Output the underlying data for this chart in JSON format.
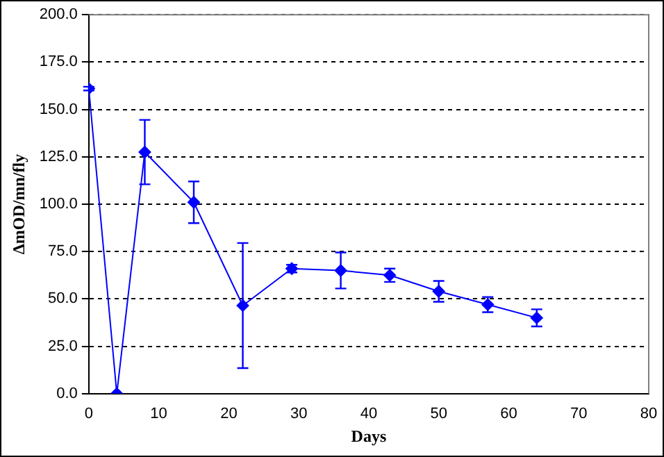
{
  "chart_data": {
    "type": "line",
    "xlabel": "Days",
    "ylabel": "ΔmOD/mn/fly",
    "x": [
      0,
      4,
      8,
      15,
      22,
      29,
      36,
      43,
      50,
      57,
      64
    ],
    "series": [
      {
        "color": "#0000ff",
        "values": [
          161,
          0,
          127.5,
          101,
          46.5,
          66,
          65,
          62.5,
          54,
          47,
          40
        ],
        "errors": [
          1,
          null,
          17,
          11,
          33,
          2,
          9.5,
          3.5,
          5.5,
          4,
          4.5
        ]
      }
    ],
    "xlim": [
      0,
      80
    ],
    "xticks": [
      0,
      10,
      20,
      30,
      40,
      50,
      60,
      70,
      80
    ],
    "ylim": [
      0,
      200
    ],
    "yticks": [
      {
        "value": 0,
        "label": "0.0"
      },
      {
        "value": 25,
        "label": "25.0"
      },
      {
        "value": 50,
        "label": "50.0"
      },
      {
        "value": 75,
        "label": "75.0"
      },
      {
        "value": 100,
        "label": "100.0"
      },
      {
        "value": 125,
        "label": "125.0"
      },
      {
        "value": 150,
        "label": "150.0"
      },
      {
        "value": 175,
        "label": "175.0"
      },
      {
        "value": 200,
        "label": "200.0"
      }
    ],
    "grid": "y",
    "legend": false,
    "marker": "diamond",
    "line_style": "solid"
  }
}
